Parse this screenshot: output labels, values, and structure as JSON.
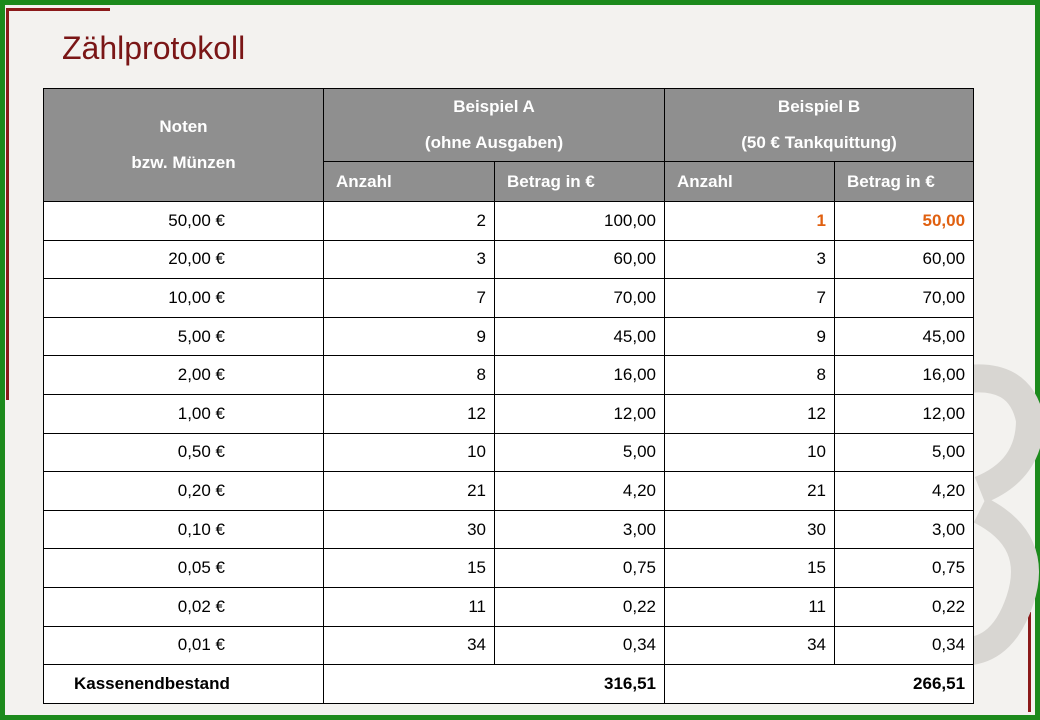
{
  "title": "Zählprotokoll",
  "header": {
    "col1_line1": "Noten",
    "col1_line2": "bzw. Münzen",
    "a_line1": "Beispiel A",
    "a_line2": "(ohne Ausgaben)",
    "b_line1": "Beispiel B",
    "b_line2": "(50 € Tankquittung)",
    "sub": [
      "Anzahl",
      "Betrag in €",
      "Anzahl",
      "Betrag in €"
    ]
  },
  "rows": [
    [
      "50,00 €",
      "2",
      "100,00",
      "1",
      "50,00"
    ],
    [
      "20,00 €",
      "3",
      "60,00",
      "3",
      "60,00"
    ],
    [
      "10,00 €",
      "7",
      "70,00",
      "7",
      "70,00"
    ],
    [
      "5,00 €",
      "9",
      "45,00",
      "9",
      "45,00"
    ],
    [
      "2,00 €",
      "8",
      "16,00",
      "8",
      "16,00"
    ],
    [
      "1,00 €",
      "12",
      "12,00",
      "12",
      "12,00"
    ],
    [
      "0,50 €",
      "10",
      "5,00",
      "10",
      "5,00"
    ],
    [
      "0,20 €",
      "21",
      "4,20",
      "21",
      "4,20"
    ],
    [
      "0,10 €",
      "30",
      "3,00",
      "30",
      "3,00"
    ],
    [
      "0,05 €",
      "15",
      "0,75",
      "15",
      "0,75"
    ],
    [
      "0,02 €",
      "11",
      "0,22",
      "11",
      "0,22"
    ],
    [
      "0,01 €",
      "34",
      "0,34",
      "34",
      "0,34"
    ]
  ],
  "total": {
    "label": "Kassenendbestand",
    "a": "316,51",
    "b": "266,51"
  },
  "colors": {
    "title": "#7a1616",
    "header_bg": "#8f8f8f",
    "highlight": "#e06010",
    "frame": "#1c8a1c"
  }
}
